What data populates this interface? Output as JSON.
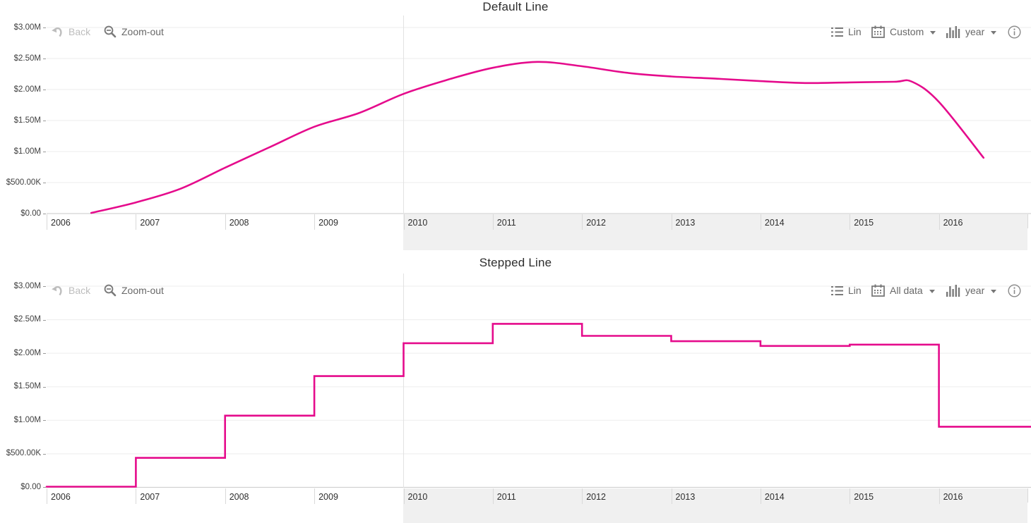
{
  "charts": [
    {
      "title": "Default Line",
      "toolbar": {
        "back": "Back",
        "zoom_out": "Zoom-out",
        "scale": "Lin",
        "range": "Custom",
        "grouping": "year"
      }
    },
    {
      "title": "Stepped Line",
      "toolbar": {
        "back": "Back",
        "zoom_out": "Zoom-out",
        "scale": "Lin",
        "range": "All data",
        "grouping": "year"
      }
    }
  ],
  "y_axis_labels": [
    "$3.00M",
    "$2.50M",
    "$2.00M",
    "$1.50M",
    "$1.00M",
    "$500.00K",
    "$0.00"
  ],
  "x_axis_labels": [
    "2006",
    "2007",
    "2008",
    "2009",
    "2010",
    "2011",
    "2012",
    "2013",
    "2014",
    "2015",
    "2016"
  ],
  "colors": {
    "line": "#e50b8c",
    "band": "#f0f0f0",
    "grid": "#ededed",
    "axis": "#c9c9c9",
    "cursor": "#e2e2e2"
  },
  "chart_data": [
    {
      "type": "line",
      "title": "Default Line",
      "xlabel": "year",
      "ylabel": "",
      "x_range": [
        2006,
        2017.03
      ],
      "ylim": [
        0,
        3190000
      ],
      "y_ticks": [
        3000000,
        2500000,
        2000000,
        1500000,
        1000000,
        500000,
        0
      ],
      "x_ticks": [
        2006,
        2007,
        2008,
        2009,
        2010,
        2011,
        2012,
        2013,
        2014,
        2015,
        2016
      ],
      "grid": true,
      "smooth": true,
      "points": [
        [
          2006.5,
          10000
        ],
        [
          2007.0,
          180000
        ],
        [
          2007.5,
          400000
        ],
        [
          2008.0,
          740000
        ],
        [
          2008.5,
          1070000
        ],
        [
          2009.0,
          1400000
        ],
        [
          2009.5,
          1620000
        ],
        [
          2010.0,
          1930000
        ],
        [
          2010.5,
          2160000
        ],
        [
          2011.0,
          2350000
        ],
        [
          2011.5,
          2445000
        ],
        [
          2012.0,
          2375000
        ],
        [
          2012.5,
          2270000
        ],
        [
          2013.0,
          2210000
        ],
        [
          2013.5,
          2175000
        ],
        [
          2014.0,
          2135000
        ],
        [
          2014.5,
          2105000
        ],
        [
          2015.0,
          2115000
        ],
        [
          2015.5,
          2125000
        ],
        [
          2015.7,
          2125000
        ],
        [
          2016.0,
          1800000
        ],
        [
          2016.5,
          900000
        ]
      ]
    },
    {
      "type": "step",
      "title": "Stepped Line",
      "xlabel": "year",
      "ylabel": "",
      "x_range": [
        2006,
        2017.03
      ],
      "ylim": [
        0,
        3000000
      ],
      "y_ticks": [
        3000000,
        2500000,
        2000000,
        1500000,
        1000000,
        500000,
        0
      ],
      "x_ticks": [
        2006,
        2007,
        2008,
        2009,
        2010,
        2011,
        2012,
        2013,
        2014,
        2015,
        2016
      ],
      "grid": true,
      "extend_to_right_edge": true,
      "points": [
        [
          2006,
          10000
        ],
        [
          2007,
          440000
        ],
        [
          2008,
          1070000
        ],
        [
          2009,
          1660000
        ],
        [
          2010,
          2150000
        ],
        [
          2011,
          2440000
        ],
        [
          2012,
          2260000
        ],
        [
          2013,
          2180000
        ],
        [
          2014,
          2110000
        ],
        [
          2015,
          2130000
        ],
        [
          2016,
          905000
        ]
      ]
    }
  ]
}
